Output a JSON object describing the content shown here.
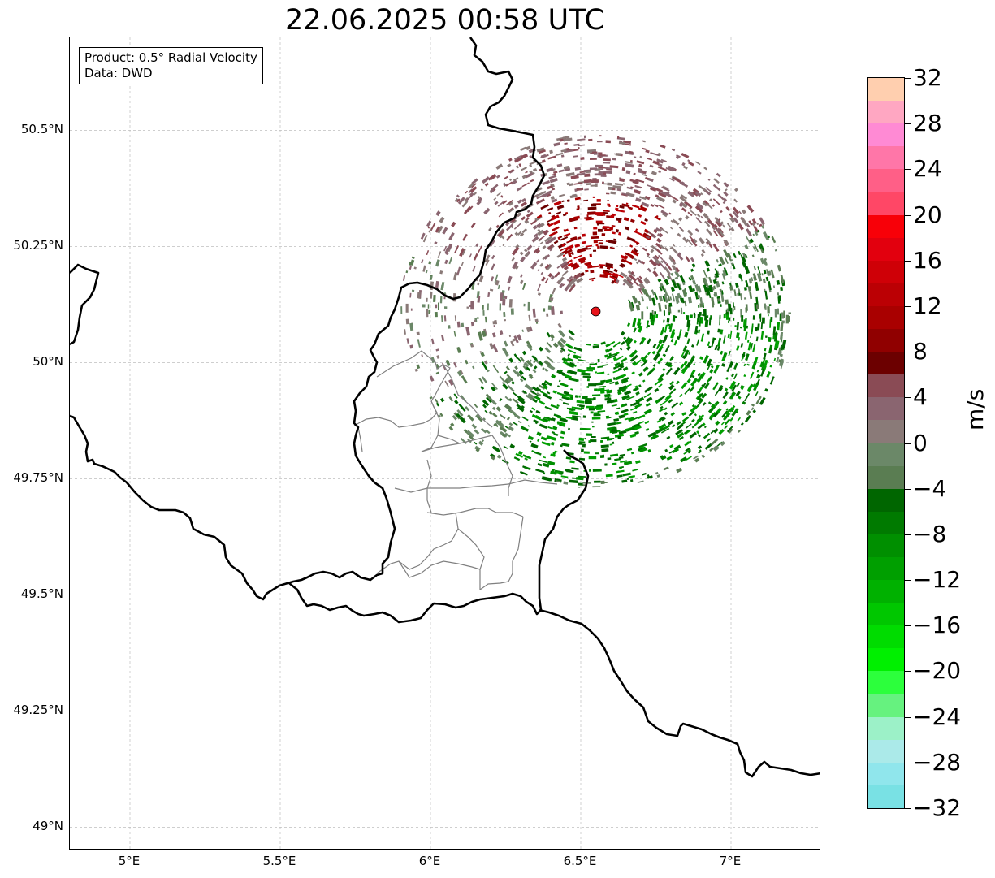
{
  "title": "22.06.2025 00:58 UTC",
  "info_box": {
    "product_line": "Product: 0.5° Radial Velocity",
    "data_line": "Data: DWD"
  },
  "map": {
    "lon_range": [
      4.8,
      7.3
    ],
    "lat_range": [
      48.95,
      50.7
    ],
    "lon_ticks": [
      {
        "value": 5.0,
        "label": "5°E"
      },
      {
        "value": 5.5,
        "label": "5.5°E"
      },
      {
        "value": 6.0,
        "label": "6°E"
      },
      {
        "value": 6.5,
        "label": "6.5°E"
      },
      {
        "value": 7.0,
        "label": "7°E"
      }
    ],
    "lat_ticks": [
      {
        "value": 50.5,
        "label": "50.5°N"
      },
      {
        "value": 50.25,
        "label": "50.25°N"
      },
      {
        "value": 50.0,
        "label": "50°N"
      },
      {
        "value": 49.75,
        "label": "49.75°N"
      },
      {
        "value": 49.5,
        "label": "49.5°N"
      },
      {
        "value": 49.25,
        "label": "49.25°N"
      },
      {
        "value": 49.0,
        "label": "49°N"
      }
    ],
    "radar_site": {
      "lon": 6.55,
      "lat": 50.11,
      "color": "#e8141b"
    },
    "gridlines": true
  },
  "colorbar": {
    "unit": "m/s",
    "min": -32,
    "max": 32,
    "tick_labels": [
      "32",
      "28",
      "24",
      "20",
      "16",
      "12",
      "8",
      "4",
      "0",
      "−4",
      "−8",
      "−12",
      "−16",
      "−20",
      "−24",
      "−28",
      "−32"
    ],
    "colors_top_to_bottom": [
      "#ffcfaf",
      "#ffa7c2",
      "#ff8ad4",
      "#ff76a8",
      "#ff5f87",
      "#ff4766",
      "#f80008",
      "#e2000e",
      "#cf0007",
      "#bb0004",
      "#a90000",
      "#900000",
      "#6c0000",
      "#8a4b55",
      "#8a6570",
      "#8a7a78",
      "#6b8868",
      "#5a7d52",
      "#006600",
      "#007a00",
      "#008f00",
      "#009f00",
      "#00b100",
      "#00c700",
      "#00dc00",
      "#00f000",
      "#2cff3c",
      "#66f27f",
      "#9cf1c8",
      "#abeae9",
      "#90e6ec",
      "#79e1e4"
    ]
  }
}
